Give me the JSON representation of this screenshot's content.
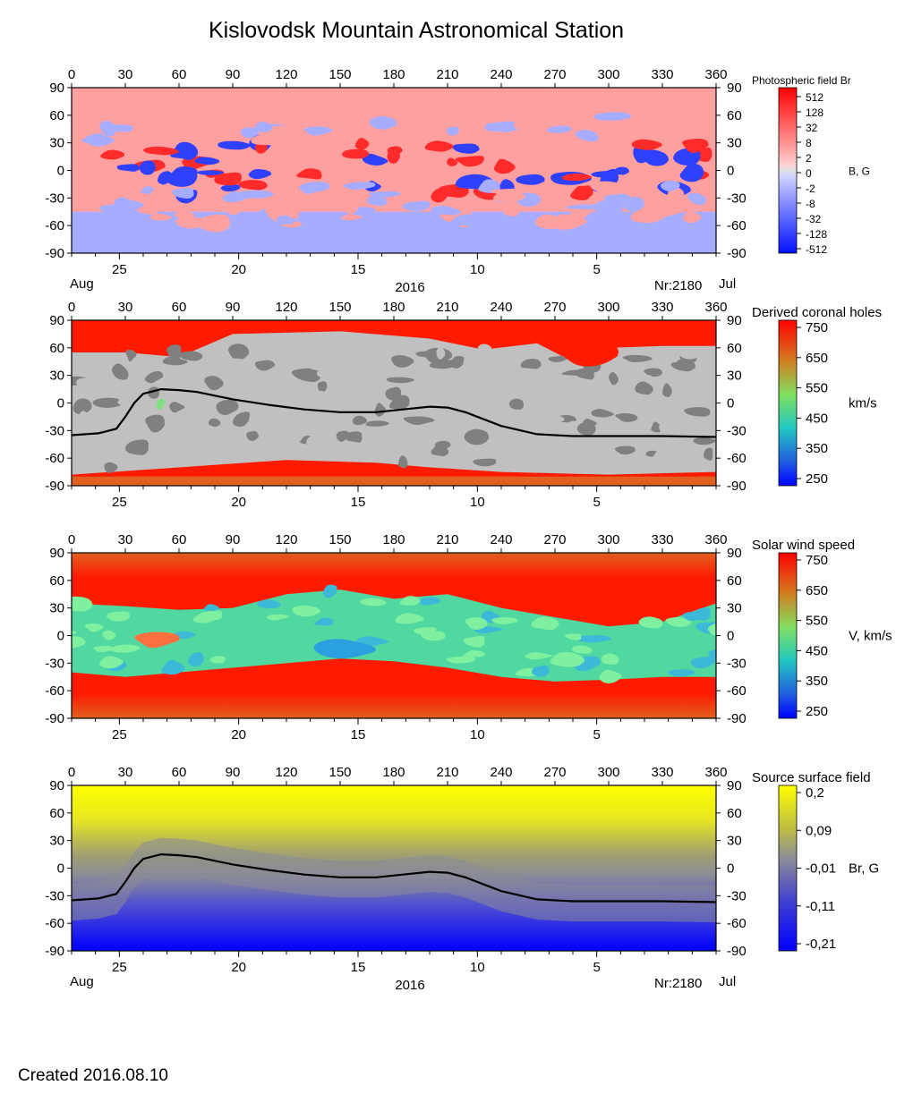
{
  "title": "Kislovodsk Mountain Astronomical Station",
  "created": "Created  2016.08.10",
  "axes": {
    "lon_ticks": [
      "0",
      "30",
      "60",
      "90",
      "120",
      "150",
      "180",
      "210",
      "240",
      "270",
      "300",
      "330",
      "360"
    ],
    "lat_ticks": [
      "90",
      "60",
      "30",
      "0",
      "-30",
      "-60",
      "-90"
    ],
    "day_ticks": [
      "25",
      "20",
      "15",
      "10",
      "5"
    ],
    "day_positions": [
      25,
      20,
      15,
      10,
      5
    ],
    "month_left": "Aug",
    "month_right": "Jul",
    "year": "2016",
    "rotation": "Nr:2180"
  },
  "colors": {
    "photo_pos": "#ff2b2b",
    "photo_pos_weak": "#ffa0a0",
    "photo_neg": "#3040ff",
    "photo_neg_weak": "#a6acff",
    "gray_dark": "#808080",
    "gray_light": "#c0c0c0",
    "wind_fast": "#ff1a00",
    "wind_slow": "#3cb8d8",
    "field_pos": "#ffff00",
    "field_mid": "#8a8a99",
    "field_neg": "#0000ff",
    "neutral_line": "#000000"
  },
  "chart_data": [
    {
      "type": "heatmap",
      "name": "Photospheric field Br",
      "title": "Photospheric field Br",
      "colorbar_label": "B, G",
      "colorbar_ticks": [
        "512",
        "128",
        "32",
        "8",
        "2",
        "0",
        "-2",
        "-8",
        "-32",
        "-128",
        "-512"
      ],
      "xlim": [
        0,
        360
      ],
      "ylim": [
        -90,
        90
      ],
      "show_bottom_labels": true
    },
    {
      "type": "heatmap",
      "name": "Derived coronal holes",
      "title": "Derived coronal holes",
      "colorbar_label": "km/s",
      "colorbar_ticks": [
        "750",
        "650",
        "550",
        "450",
        "350",
        "250"
      ],
      "xlim": [
        0,
        360
      ],
      "ylim": [
        -90,
        90
      ],
      "neutral_line": {
        "lon": [
          0,
          15,
          25,
          30,
          35,
          40,
          50,
          60,
          70,
          90,
          110,
          130,
          150,
          170,
          190,
          200,
          210,
          220,
          240,
          260,
          280,
          300,
          330,
          360
        ],
        "lat": [
          -35,
          -33,
          -28,
          -15,
          0,
          10,
          15,
          14,
          12,
          4,
          -2,
          -7,
          -10,
          -10,
          -6,
          -4,
          -5,
          -10,
          -25,
          -34,
          -36,
          -36,
          -36,
          -37
        ]
      }
    },
    {
      "type": "heatmap",
      "name": "Solar wind speed",
      "title": "Solar wind speed",
      "colorbar_label": "V, km/s",
      "colorbar_ticks": [
        "750",
        "650",
        "550",
        "450",
        "350",
        "250"
      ],
      "xlim": [
        0,
        360
      ],
      "ylim": [
        -90,
        90
      ]
    },
    {
      "type": "heatmap",
      "name": "Source surface field",
      "title": "Source surface field",
      "colorbar_label": "Br, G",
      "colorbar_ticks": [
        "0,2",
        "0,09",
        "-0,01",
        "-0,11",
        "-0,21"
      ],
      "xlim": [
        0,
        360
      ],
      "ylim": [
        -90,
        90
      ],
      "show_bottom_labels": true,
      "neutral_line": {
        "lon": [
          0,
          15,
          25,
          30,
          35,
          40,
          50,
          60,
          70,
          90,
          110,
          130,
          150,
          170,
          190,
          200,
          210,
          220,
          240,
          260,
          280,
          300,
          330,
          360
        ],
        "lat": [
          -35,
          -33,
          -28,
          -15,
          0,
          10,
          15,
          14,
          12,
          4,
          -2,
          -7,
          -10,
          -10,
          -6,
          -4,
          -5,
          -10,
          -25,
          -34,
          -36,
          -36,
          -36,
          -37
        ]
      }
    }
  ]
}
